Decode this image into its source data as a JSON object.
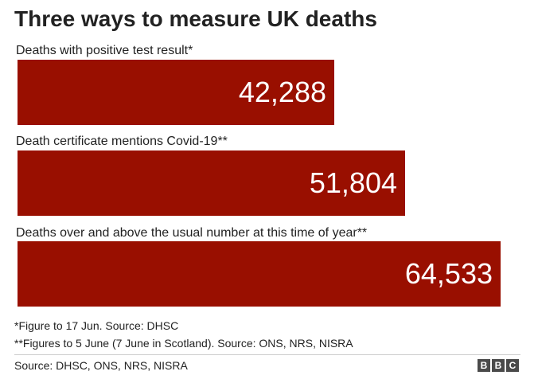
{
  "title": "Three ways to measure UK deaths",
  "chart_data": {
    "type": "bar",
    "orientation": "horizontal",
    "title": "Three ways to measure UK deaths",
    "categories": [
      "Deaths with positive test result*",
      "Death certificate mentions Covid-19**",
      "Deaths over and above the usual number at this time of year**"
    ],
    "values": [
      42288,
      51804,
      64533
    ],
    "value_labels": [
      "42,288",
      "51,804",
      "64,533"
    ],
    "bar_color": "#990f00",
    "grid": false,
    "legend": "none"
  },
  "notes": {
    "note1": "*Figure to 17 Jun. Source: DHSC",
    "note2": "**Figures to 5 June (7 June in Scotland). Source: ONS, NRS, NISRA"
  },
  "source": "Source: DHSC, ONS, NRS, NISRA",
  "logo": [
    "B",
    "B",
    "C"
  ]
}
